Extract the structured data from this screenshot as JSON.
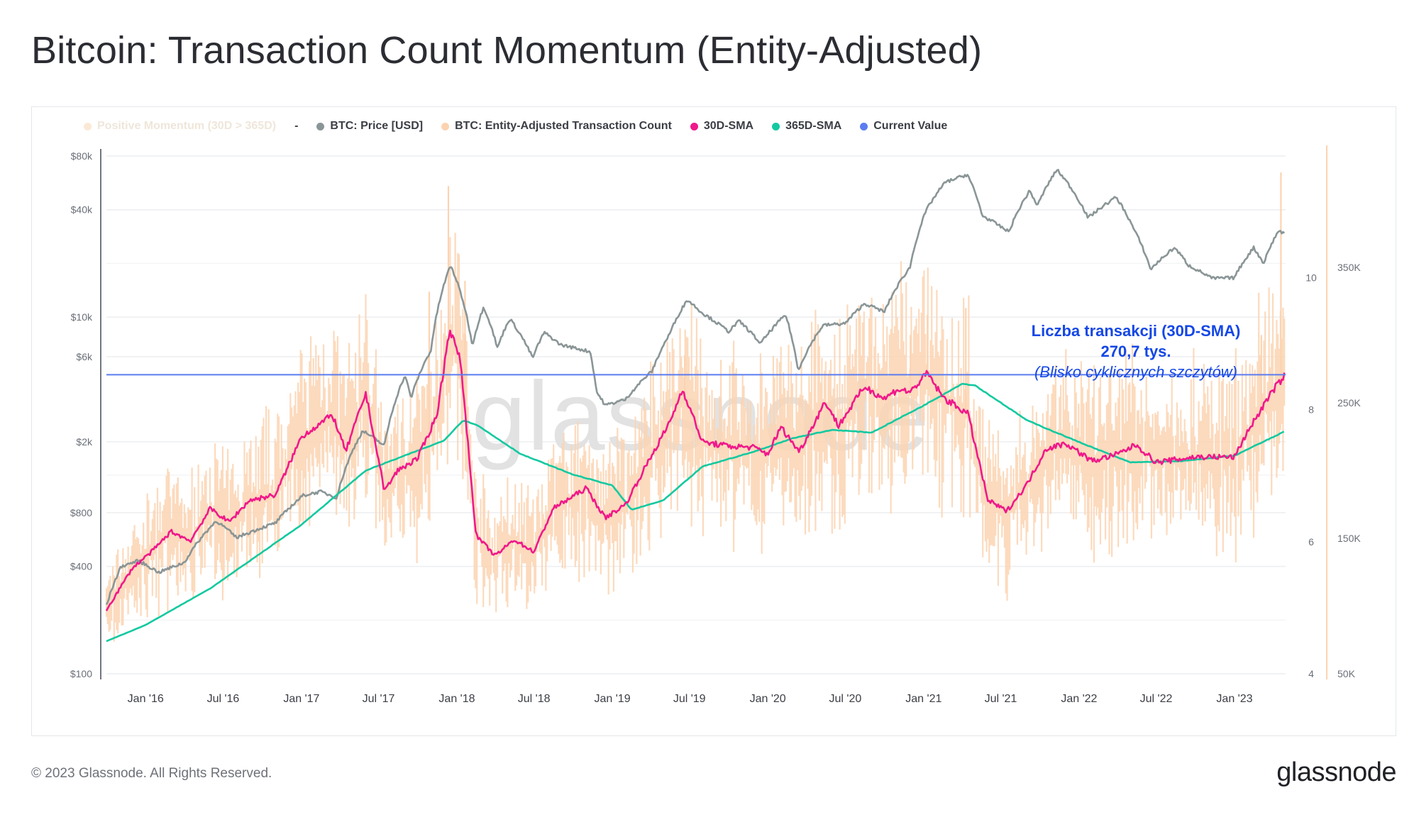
{
  "title": "Bitcoin: Transaction Count Momentum (Entity-Adjusted)",
  "legend": {
    "items": [
      {
        "label": "Positive Momentum (30D > 365D)",
        "color": "#fbe9d6",
        "muted": true
      },
      {
        "label": "-",
        "dash": true
      },
      {
        "label": "BTC: Price [USD]",
        "color": "#8a9596"
      },
      {
        "label": "BTC: Entity-Adjusted Transaction Count",
        "color": "#fcd3b1"
      },
      {
        "label": "30D-SMA",
        "color": "#f0188a"
      },
      {
        "label": "365D-SMA",
        "color": "#13c9a0"
      },
      {
        "label": "Current Value",
        "color": "#5b7cf0"
      }
    ]
  },
  "watermark": "glassnode",
  "annotation": {
    "line1": "Liczba transakcji (30D-SMA)",
    "line2": "270,7 tys.",
    "line3": "(Blisko cyklicznych szczytów)"
  },
  "footer": {
    "copyright": "© 2023 Glassnode. All Rights Reserved.",
    "logo": "glassnode"
  },
  "colors": {
    "price": "#8a9596",
    "tx_count": "#fcd3b1",
    "sma30": "#f0188a",
    "sma365": "#13c9a0",
    "current_value": "#5b7cf0",
    "annotation": "#1447e6"
  },
  "chart_data": {
    "type": "line",
    "title": "Bitcoin: Transaction Count Momentum (Entity-Adjusted)",
    "x_ticks": [
      "Jan '16",
      "Jul '16",
      "Jan '17",
      "Jul '17",
      "Jan '18",
      "Jul '18",
      "Jan '19",
      "Jul '19",
      "Jan '20",
      "Jul '20",
      "Jan '21",
      "Jul '21",
      "Jan '22",
      "Jul '22",
      "Jan '23"
    ],
    "x_range": [
      "2015-10-01",
      "2023-05-01"
    ],
    "y_left": {
      "scale": "log",
      "ticks": [
        "$100",
        "$400",
        "$800",
        "$2k",
        "$6k",
        "$10k",
        "$40k",
        "$80k"
      ],
      "tick_values": [
        100,
        400,
        800,
        2000,
        6000,
        10000,
        40000,
        80000
      ],
      "range": [
        100,
        80000
      ]
    },
    "y_mid": {
      "ticks": [
        "4",
        "6",
        "8",
        "10"
      ],
      "tick_values": [
        4,
        6,
        8,
        10
      ],
      "range": [
        4,
        12
      ]
    },
    "y_right": {
      "ticks": [
        "50K",
        "150K",
        "250K",
        "350K"
      ],
      "tick_values": [
        50000,
        150000,
        250000,
        350000
      ],
      "range": [
        50000,
        440000
      ]
    },
    "current_value": 270700,
    "series": [
      {
        "name": "BTC: Price [USD]",
        "axis": "left",
        "points": [
          [
            "2015-10-01",
            240
          ],
          [
            "2015-11-05",
            400
          ],
          [
            "2015-12-15",
            430
          ],
          [
            "2016-02-01",
            370
          ],
          [
            "2016-04-01",
            420
          ],
          [
            "2016-06-15",
            720
          ],
          [
            "2016-08-01",
            580
          ],
          [
            "2016-11-01",
            700
          ],
          [
            "2017-01-05",
            1000
          ],
          [
            "2017-02-15",
            1050
          ],
          [
            "2017-03-25",
            970
          ],
          [
            "2017-05-25",
            2300
          ],
          [
            "2017-07-15",
            1900
          ],
          [
            "2017-09-01",
            4700
          ],
          [
            "2017-09-15",
            3500
          ],
          [
            "2017-11-01",
            6500
          ],
          [
            "2017-12-17",
            19500
          ],
          [
            "2018-02-06",
            6900
          ],
          [
            "2018-03-05",
            11400
          ],
          [
            "2018-04-06",
            6700
          ],
          [
            "2018-05-05",
            9800
          ],
          [
            "2018-06-28",
            5900
          ],
          [
            "2018-07-25",
            8200
          ],
          [
            "2018-09-01",
            7000
          ],
          [
            "2018-11-10",
            6400
          ],
          [
            "2018-11-25",
            3800
          ],
          [
            "2018-12-15",
            3200
          ],
          [
            "2019-02-01",
            3450
          ],
          [
            "2019-04-05",
            5000
          ],
          [
            "2019-05-15",
            8000
          ],
          [
            "2019-06-26",
            12500
          ],
          [
            "2019-08-01",
            10500
          ],
          [
            "2019-10-01",
            8300
          ],
          [
            "2019-10-26",
            9500
          ],
          [
            "2019-12-15",
            7100
          ],
          [
            "2020-02-12",
            10300
          ],
          [
            "2020-03-12",
            5000
          ],
          [
            "2020-05-10",
            9000
          ],
          [
            "2020-07-01",
            9200
          ],
          [
            "2020-08-15",
            11900
          ],
          [
            "2020-10-01",
            10700
          ],
          [
            "2020-11-30",
            19000
          ],
          [
            "2021-01-08",
            40000
          ],
          [
            "2021-02-21",
            57000
          ],
          [
            "2021-04-14",
            63000
          ],
          [
            "2021-05-19",
            37000
          ],
          [
            "2021-07-20",
            30000
          ],
          [
            "2021-09-07",
            51000
          ],
          [
            "2021-09-25",
            42000
          ],
          [
            "2021-11-10",
            67000
          ],
          [
            "2022-01-22",
            36000
          ],
          [
            "2022-03-29",
            47000
          ],
          [
            "2022-05-10",
            31000
          ],
          [
            "2022-06-18",
            18500
          ],
          [
            "2022-08-13",
            24500
          ],
          [
            "2022-09-15",
            19500
          ],
          [
            "2022-11-09",
            16500
          ],
          [
            "2022-12-31",
            16600
          ],
          [
            "2023-02-15",
            24500
          ],
          [
            "2023-03-10",
            20000
          ],
          [
            "2023-04-14",
            30400
          ],
          [
            "2023-04-30",
            29500
          ]
        ]
      },
      {
        "name": "30D-SMA",
        "axis": "right",
        "points": [
          [
            "2015-10-01",
            97000
          ],
          [
            "2015-12-01",
            128000
          ],
          [
            "2016-01-15",
            140000
          ],
          [
            "2016-03-01",
            155000
          ],
          [
            "2016-04-15",
            148000
          ],
          [
            "2016-06-01",
            172000
          ],
          [
            "2016-07-15",
            162000
          ],
          [
            "2016-09-01",
            178000
          ],
          [
            "2016-11-01",
            182000
          ],
          [
            "2017-01-01",
            225000
          ],
          [
            "2017-03-15",
            241000
          ],
          [
            "2017-04-15",
            214000
          ],
          [
            "2017-06-01",
            257000
          ],
          [
            "2017-07-15",
            185000
          ],
          [
            "2017-08-15",
            200000
          ],
          [
            "2017-10-01",
            209000
          ],
          [
            "2017-11-15",
            241000
          ],
          [
            "2017-12-15",
            305000
          ],
          [
            "2018-01-10",
            280000
          ],
          [
            "2018-02-15",
            152000
          ],
          [
            "2018-04-01",
            137000
          ],
          [
            "2018-05-15",
            149000
          ],
          [
            "2018-07-01",
            140000
          ],
          [
            "2018-08-15",
            172000
          ],
          [
            "2018-11-01",
            187000
          ],
          [
            "2018-12-15",
            165000
          ],
          [
            "2019-02-01",
            175000
          ],
          [
            "2019-03-15",
            200000
          ],
          [
            "2019-05-15",
            235000
          ],
          [
            "2019-06-15",
            260000
          ],
          [
            "2019-08-01",
            221000
          ],
          [
            "2019-10-01",
            218000
          ],
          [
            "2019-12-01",
            217000
          ],
          [
            "2020-01-01",
            212000
          ],
          [
            "2020-02-01",
            232000
          ],
          [
            "2020-03-15",
            214000
          ],
          [
            "2020-05-15",
            251000
          ],
          [
            "2020-06-15",
            233000
          ],
          [
            "2020-08-15",
            262000
          ],
          [
            "2020-10-01",
            253000
          ],
          [
            "2020-11-01",
            260000
          ],
          [
            "2020-12-01",
            258000
          ],
          [
            "2021-01-10",
            272000
          ],
          [
            "2021-02-15",
            254000
          ],
          [
            "2021-04-15",
            242000
          ],
          [
            "2021-06-01",
            178000
          ],
          [
            "2021-07-15",
            170000
          ],
          [
            "2021-09-01",
            190000
          ],
          [
            "2021-10-15",
            216000
          ],
          [
            "2021-12-01",
            220000
          ],
          [
            "2022-02-01",
            207000
          ],
          [
            "2022-04-01",
            212000
          ],
          [
            "2022-05-15",
            219000
          ],
          [
            "2022-07-01",
            206000
          ],
          [
            "2022-10-01",
            210000
          ],
          [
            "2023-01-01",
            210000
          ],
          [
            "2023-02-01",
            229000
          ],
          [
            "2023-04-01",
            259000
          ],
          [
            "2023-04-30",
            270700
          ]
        ]
      },
      {
        "name": "365D-SMA",
        "axis": "right",
        "points": [
          [
            "2015-10-01",
            74000
          ],
          [
            "2016-01-01",
            86000
          ],
          [
            "2016-06-01",
            113000
          ],
          [
            "2017-01-01",
            160000
          ],
          [
            "2017-06-01",
            200000
          ],
          [
            "2017-12-01",
            222000
          ],
          [
            "2018-01-15",
            237000
          ],
          [
            "2018-02-15",
            234000
          ],
          [
            "2018-06-01",
            212000
          ],
          [
            "2018-10-01",
            197000
          ],
          [
            "2019-01-01",
            189000
          ],
          [
            "2019-02-15",
            171000
          ],
          [
            "2019-05-01",
            178000
          ],
          [
            "2019-08-01",
            203000
          ],
          [
            "2019-12-01",
            214000
          ],
          [
            "2020-03-01",
            224000
          ],
          [
            "2020-06-01",
            230000
          ],
          [
            "2020-09-01",
            228000
          ],
          [
            "2021-01-01",
            248000
          ],
          [
            "2021-04-01",
            264000
          ],
          [
            "2021-05-01",
            263000
          ],
          [
            "2021-09-01",
            237000
          ],
          [
            "2022-01-01",
            221000
          ],
          [
            "2022-05-01",
            206000
          ],
          [
            "2022-09-01",
            207000
          ],
          [
            "2023-01-01",
            211000
          ],
          [
            "2023-04-30",
            229000
          ]
        ]
      },
      {
        "name": "BTC: Entity-Adjusted Transaction Count",
        "axis": "right",
        "note": "noisy daily series around 30D-SMA",
        "spikes": [
          [
            "2017-12-12",
            410000
          ],
          [
            "2017-10-28",
            332000
          ],
          [
            "2018-01-20",
            340000
          ],
          [
            "2019-06-20",
            285000
          ],
          [
            "2020-12-01",
            300000
          ],
          [
            "2021-01-10",
            315000
          ],
          [
            "2021-04-10",
            320000
          ],
          [
            "2023-04-20",
            420000
          ],
          [
            "2023-03-05",
            300000
          ]
        ]
      }
    ]
  }
}
